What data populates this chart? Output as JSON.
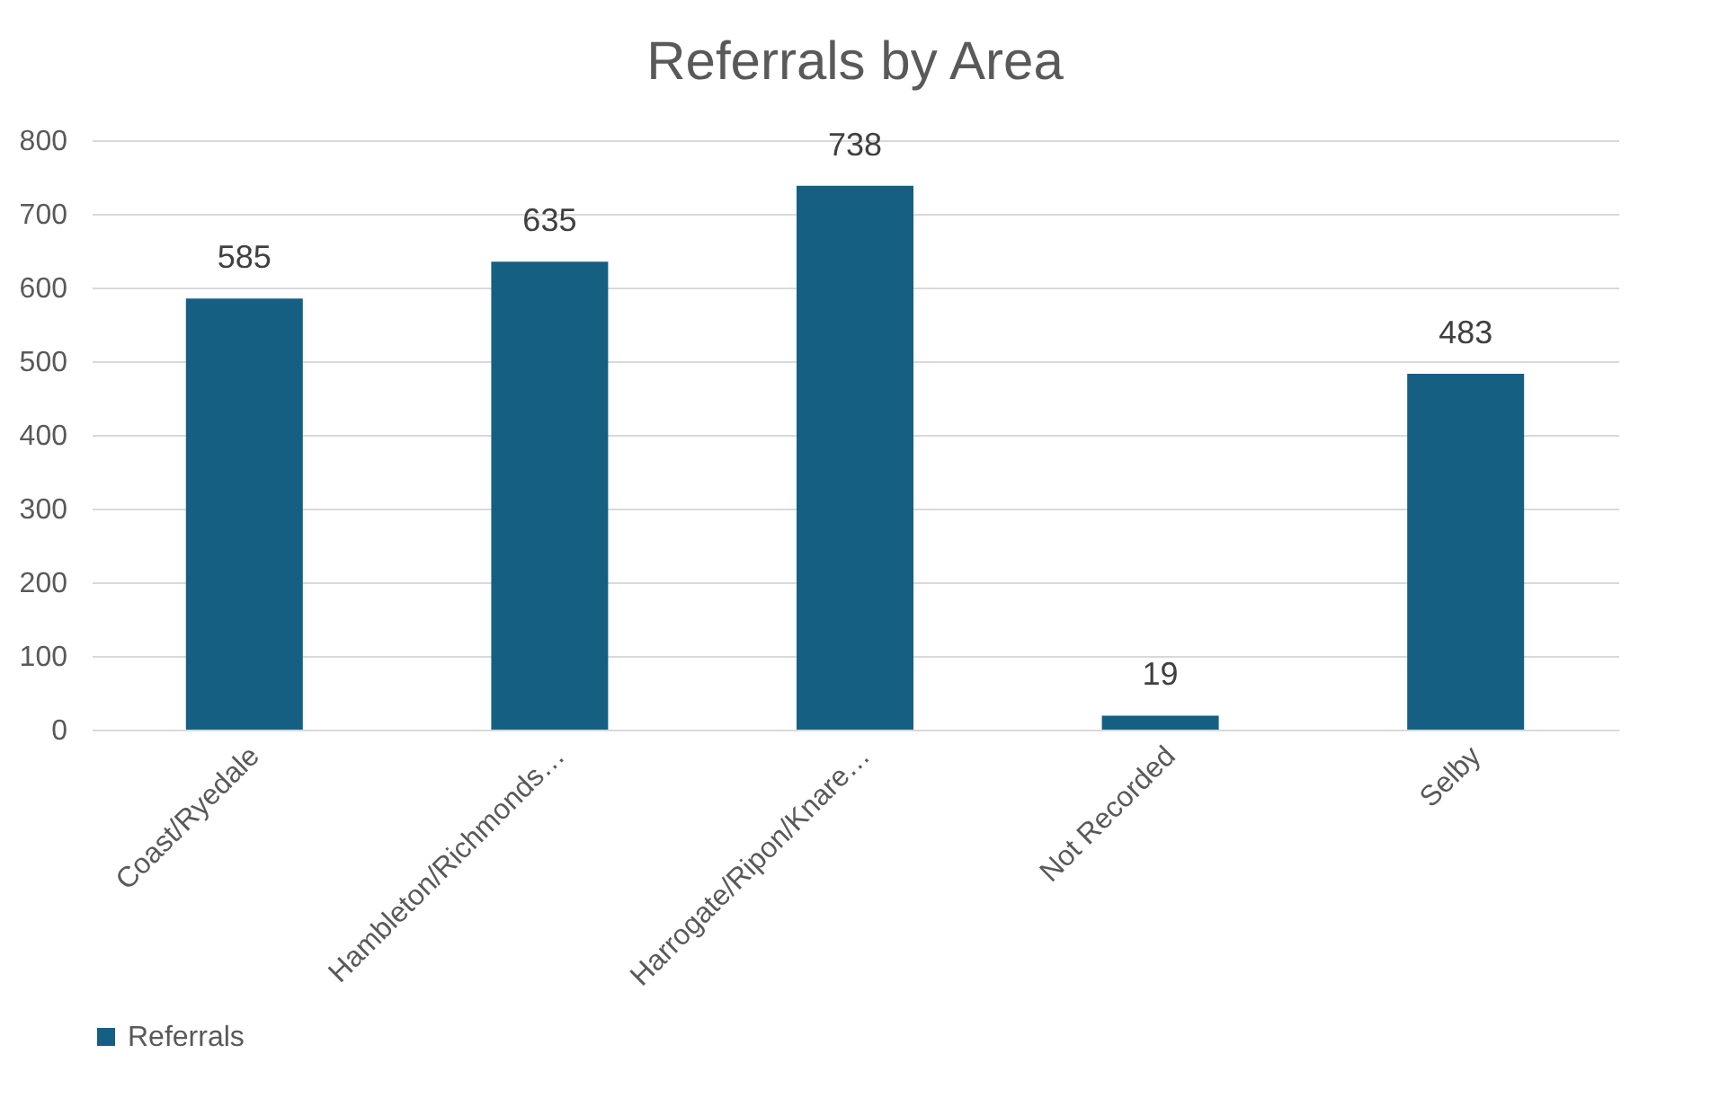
{
  "chart_data": {
    "type": "bar",
    "title": "Referrals by Area",
    "categories": [
      "Coast/Ryedale",
      "Hambleton/Richmonds…",
      "Harrogate/Ripon/Knare…",
      "Not Recorded",
      "Selby"
    ],
    "series": [
      {
        "name": "Referrals",
        "color": "#156082",
        "values": [
          585,
          635,
          738,
          19,
          483
        ]
      }
    ],
    "ylim": [
      0,
      800
    ],
    "yticks": [
      0,
      100,
      200,
      300,
      400,
      500,
      600,
      700,
      800
    ],
    "grid": "y",
    "legend": "bottom",
    "data_labels": true
  }
}
